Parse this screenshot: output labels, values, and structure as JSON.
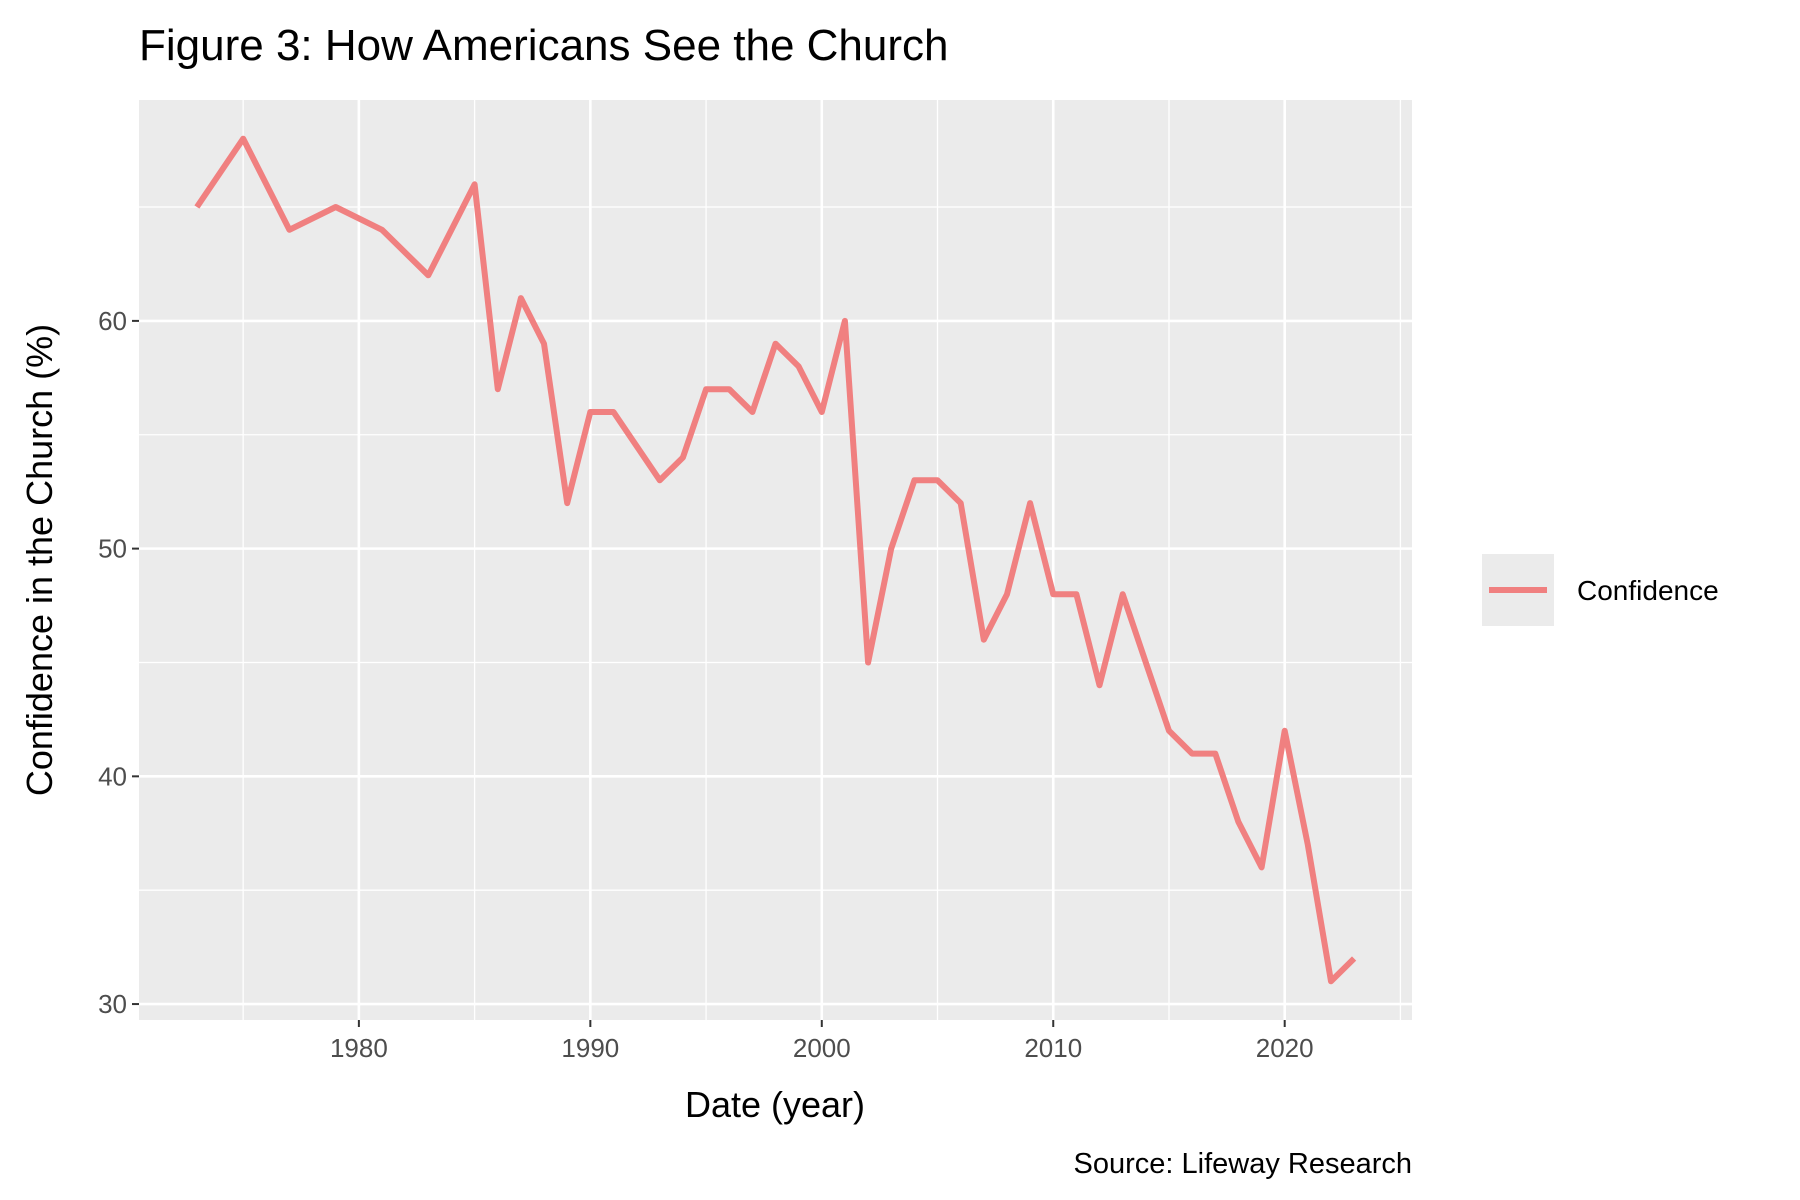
{
  "chart_data": {
    "type": "line",
    "title": "Figure 3: How Americans See the Church",
    "xlabel": "Date (year)",
    "ylabel": "Confidence in the Church (%)",
    "caption": "Source: Lifeway Research",
    "xlim": [
      1970.5,
      2025.5
    ],
    "ylim": [
      29.3,
      69.7
    ],
    "x_ticks": [
      1980,
      1990,
      2000,
      2010,
      2020
    ],
    "x_minor_ticks": [
      1975,
      1985,
      1995,
      2005,
      2015,
      2025
    ],
    "y_ticks": [
      30,
      40,
      50,
      60
    ],
    "y_minor_ticks": [
      35,
      45,
      55,
      65
    ],
    "grid": true,
    "legend": {
      "position": "right",
      "entries": [
        "Confidence"
      ]
    },
    "series": [
      {
        "name": "Confidence",
        "color": "#F08080",
        "x": [
          1973,
          1975,
          1977,
          1979,
          1981,
          1983,
          1985,
          1986,
          1987,
          1988,
          1989,
          1990,
          1991,
          1993,
          1994,
          1995,
          1996,
          1997,
          1998,
          1999,
          2000,
          2001,
          2002,
          2003,
          2004,
          2005,
          2006,
          2007,
          2008,
          2009,
          2010,
          2011,
          2012,
          2013,
          2014,
          2015,
          2016,
          2017,
          2018,
          2019,
          2020,
          2021,
          2022,
          2023
        ],
        "values": [
          65,
          68,
          64,
          65,
          64,
          62,
          66,
          57,
          61,
          59,
          52,
          56,
          56,
          53,
          54,
          57,
          57,
          56,
          59,
          58,
          56,
          60,
          45,
          50,
          53,
          53,
          52,
          46,
          48,
          52,
          48,
          48,
          44,
          48,
          45,
          42,
          41,
          41,
          38,
          36,
          42,
          37,
          31,
          32
        ]
      }
    ]
  }
}
